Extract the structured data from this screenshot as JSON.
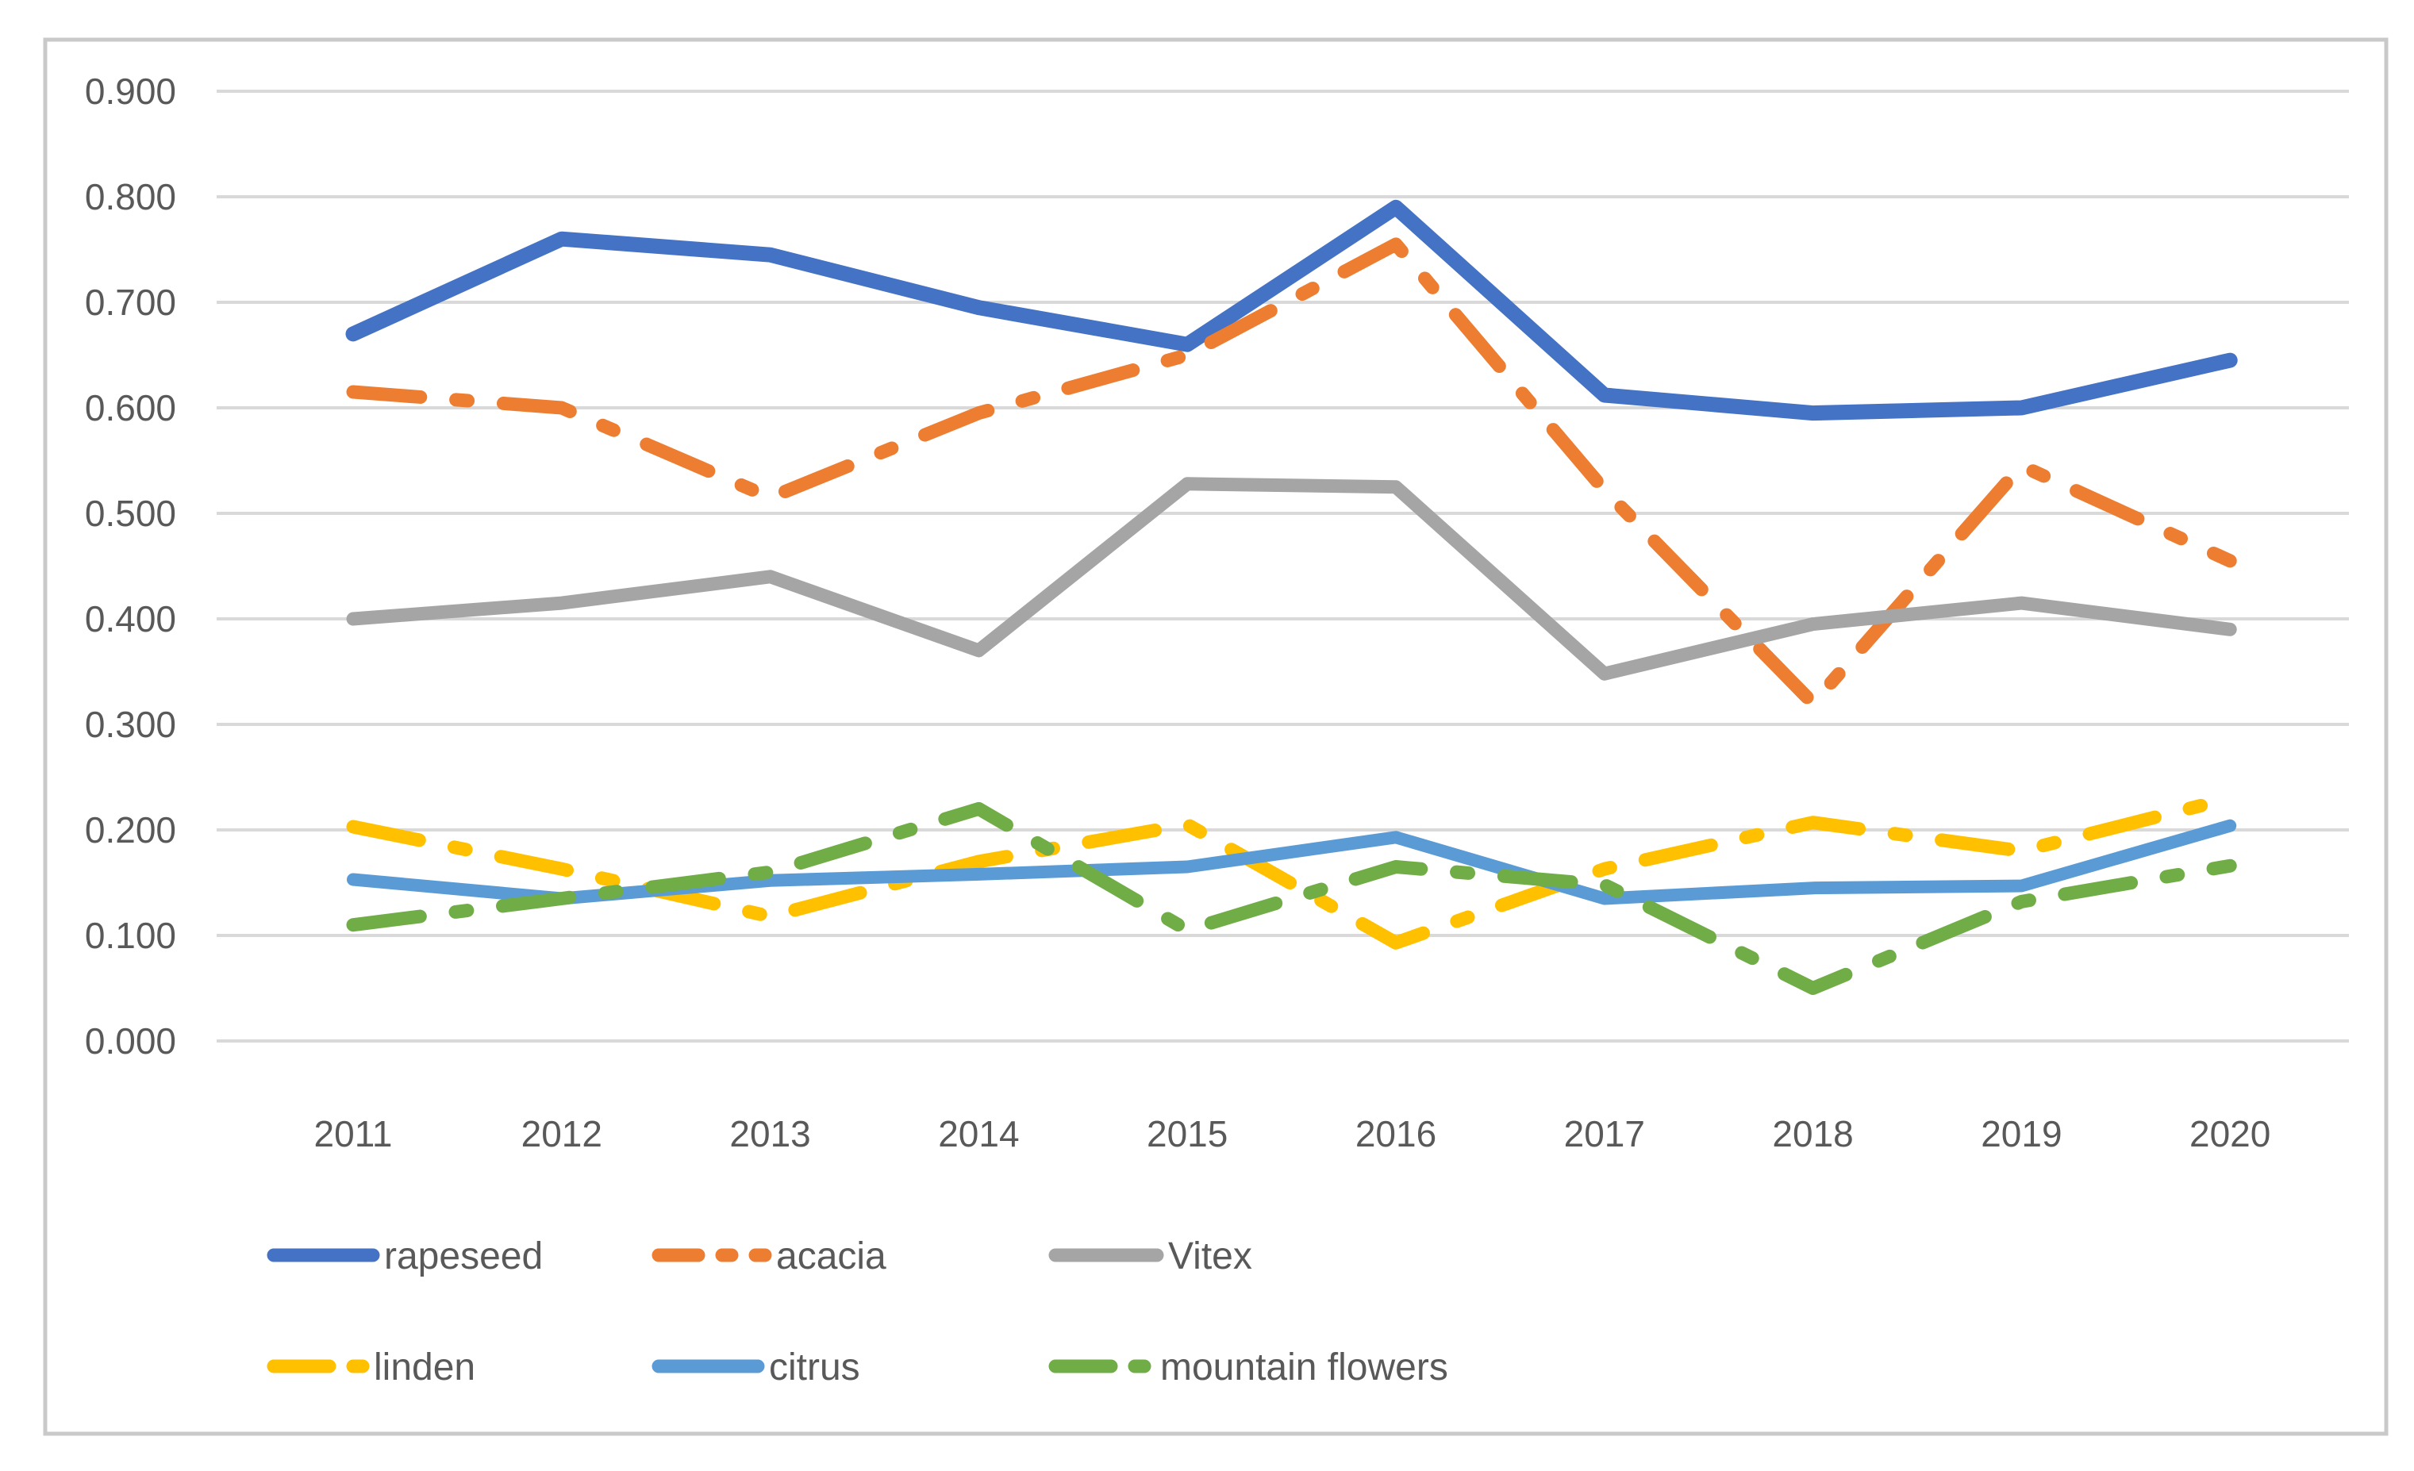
{
  "chart_data": {
    "type": "line",
    "title": "",
    "xlabel": "",
    "ylabel": "",
    "categories": [
      "2011",
      "2012",
      "2013",
      "2014",
      "2015",
      "2016",
      "2017",
      "2018",
      "2019",
      "2020"
    ],
    "series": [
      {
        "name": "rapeseed",
        "color": "#4472C4",
        "style": "solid",
        "width": 19,
        "values": [
          0.67,
          0.76,
          0.745,
          0.695,
          0.66,
          0.79,
          0.612,
          0.595,
          0.6,
          0.645
        ]
      },
      {
        "name": "acacia",
        "color": "#ED7D31",
        "style": "dash-dot",
        "width": 17,
        "values": [
          0.615,
          0.6,
          0.515,
          0.595,
          0.65,
          0.755,
          0.522,
          0.32,
          0.545,
          0.455
        ]
      },
      {
        "name": "Vitex",
        "color": "#A5A5A5",
        "style": "solid",
        "width": 17,
        "values": [
          0.4,
          0.415,
          0.44,
          0.37,
          0.528,
          0.525,
          0.348,
          0.395,
          0.415,
          0.39
        ]
      },
      {
        "name": "linden",
        "color": "#FFC000",
        "style": "dash-dot",
        "width": 17,
        "values": [
          0.203,
          0.163,
          0.118,
          0.17,
          0.205,
          0.093,
          0.163,
          0.207,
          0.18,
          0.23
        ]
      },
      {
        "name": "citrus",
        "color": "#5B9BD5",
        "style": "solid",
        "width": 16,
        "values": [
          0.153,
          0.135,
          0.152,
          0.158,
          0.165,
          0.193,
          0.135,
          0.145,
          0.147,
          0.204
        ]
      },
      {
        "name": "mountain flowers",
        "color": "#70AD47",
        "style": "dash-dot",
        "width": 17,
        "values": [
          0.11,
          0.135,
          0.16,
          0.22,
          0.105,
          0.165,
          0.148,
          0.05,
          0.132,
          0.166
        ]
      }
    ],
    "y_axis": {
      "min": 0.0,
      "max": 0.9,
      "step": 0.1,
      "tick_labels": [
        "0.000",
        "0.100",
        "0.200",
        "0.300",
        "0.400",
        "0.500",
        "0.600",
        "0.700",
        "0.800",
        "0.900"
      ]
    },
    "x_axis_labels": [
      "2011",
      "2012",
      "2013",
      "2014",
      "2015",
      "2016",
      "2017",
      "2018",
      "2019",
      "2020"
    ],
    "grid": true,
    "legend_position": "bottom",
    "legend_rows": [
      [
        "rapeseed",
        "acacia",
        "Vitex"
      ],
      [
        "linden",
        "citrus",
        "mountain flowers"
      ]
    ]
  },
  "colors": {
    "background": "#FFFFFF",
    "gridline": "#D9D9D9",
    "chart_border": "#C9C9C9",
    "axis_text": "#595959",
    "legend_text": "#595959"
  }
}
